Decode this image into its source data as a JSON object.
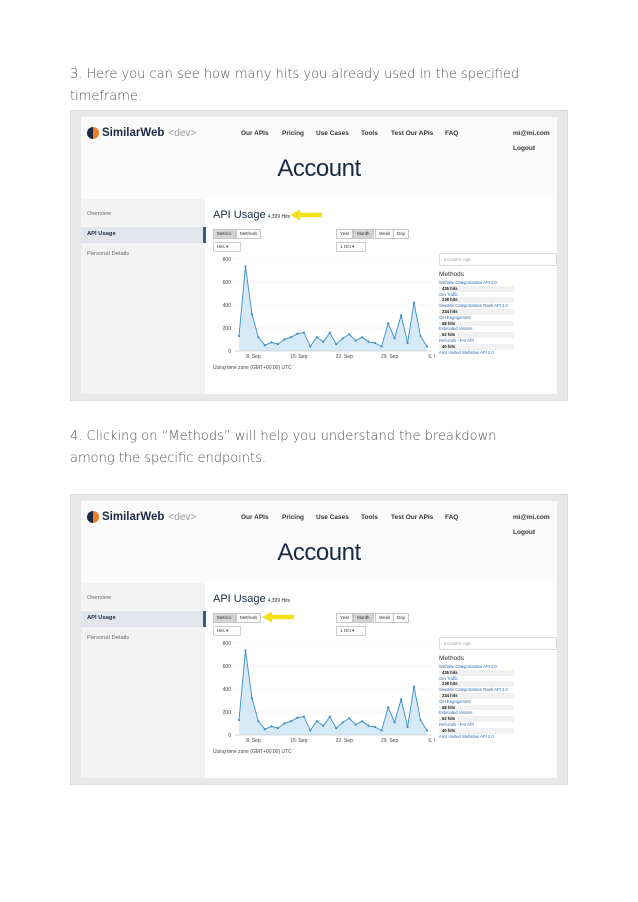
{
  "doc": {
    "step3": "3. Here you can see how many hits you already used in the specified timeframe:",
    "step4": "4. Clicking on “Methods” will help you understand the breakdown among the specific endpoints."
  },
  "screens": [
    {
      "logo": {
        "brand": "SimilarWeb",
        "tag": "<dev>"
      },
      "nav": [
        "Our APIs",
        "Pricing",
        "Use Cases",
        "Tools",
        "Test Our APIs",
        "FAQ"
      ],
      "account": {
        "email": "mi@mi.com",
        "logout": "Logout"
      },
      "page_title": "Account",
      "sidebar": [
        "Overview",
        "API Usage",
        "Personal Details"
      ],
      "active_sidebar": "API Usage",
      "section_title": "API Usage",
      "hits_total": "4,399 Hits",
      "view_tabs": [
        "Metrics",
        "Methods"
      ],
      "period_tabs": [
        "Year",
        "Month",
        "Week",
        "Day"
      ],
      "metric_select": "Hits",
      "date_select": "1 Oct",
      "timezone": "Using time zone (GMT+00:00) UTC",
      "app_name": "mi.com's App",
      "methods_heading": "Methods",
      "methods": [
        {
          "name": "Website Categorization API 2.0",
          "hits": "435 hits"
        },
        {
          "name": "Get Traffic",
          "hits": "238 hits"
        },
        {
          "name": "Website Categorization Rank API 2.0",
          "hits": "234 hits"
        },
        {
          "name": "Get Engagement",
          "hits": "68 hits"
        },
        {
          "name": "Estimated Visitors",
          "hits": "62 hits"
        },
        {
          "name": "Referrals - Pro API",
          "hits": "40 hits"
        },
        {
          "name": "Also Visited Websites API 2.0",
          "hits": ""
        }
      ],
      "highlight": "hits"
    },
    {
      "logo": {
        "brand": "SimilarWeb",
        "tag": "<dev>"
      },
      "nav": [
        "Our APIs",
        "Pricing",
        "Use Cases",
        "Tools",
        "Test Our APIs",
        "FAQ"
      ],
      "account": {
        "email": "mi@mi.com",
        "logout": "Logout"
      },
      "page_title": "Account",
      "sidebar": [
        "Overview",
        "API Usage",
        "Personal Details"
      ],
      "active_sidebar": "API Usage",
      "section_title": "API Usage",
      "hits_total": "4,399 Hits",
      "view_tabs": [
        "Metrics",
        "Methods"
      ],
      "period_tabs": [
        "Year",
        "Month",
        "Week",
        "Day"
      ],
      "metric_select": "Hits",
      "date_select": "1 Oct",
      "timezone": "Using time zone (GMT+00:00) UTC",
      "app_name": "mi.com's App",
      "methods_heading": "Methods",
      "methods": [
        {
          "name": "Website Categorization API 2.0",
          "hits": "435 hits"
        },
        {
          "name": "Get Traffic",
          "hits": "238 hits"
        },
        {
          "name": "Website Categorization Rank API 2.0",
          "hits": "234 hits"
        },
        {
          "name": "Get Engagement",
          "hits": "68 hits"
        },
        {
          "name": "Estimated Visitors",
          "hits": "62 hits"
        },
        {
          "name": "Referrals - Pro API",
          "hits": "40 hits"
        },
        {
          "name": "Also Visited Websites API 2.0",
          "hits": ""
        }
      ],
      "highlight": "methods"
    }
  ],
  "colors": {
    "line": "#3a8ec8",
    "area": "#d6e9f6",
    "arrow": "#f3e21a",
    "brand": "#1b2a44",
    "accent": "#f07d1a"
  },
  "chart_data": {
    "type": "area",
    "y_ticks": [
      "800",
      "600",
      "400",
      "200",
      "0"
    ],
    "x_ticks": [
      "8. Sep",
      "15. Sep",
      "22. Sep",
      "29. Sep",
      "6. Oct"
    ],
    "ylim": [
      0,
      800
    ],
    "series": [
      {
        "values": [
          130,
          735,
          320,
          120,
          50,
          75,
          60,
          100,
          120,
          150,
          160,
          40,
          120,
          80,
          160,
          60,
          110,
          145,
          90,
          120,
          80,
          70,
          40,
          240,
          110,
          310,
          70,
          420,
          130,
          40
        ]
      }
    ]
  }
}
